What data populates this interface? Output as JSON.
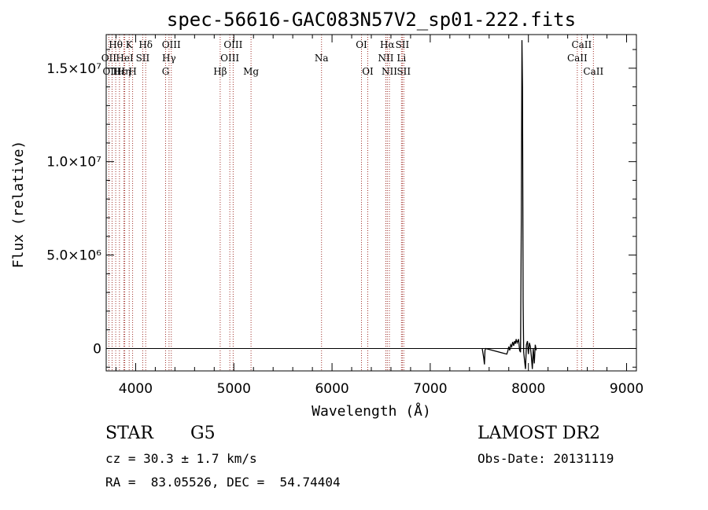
{
  "chart_data": {
    "type": "line",
    "title": "spec-56616-GAC083N57V2_sp01-222.fits",
    "xlabel": "Wavelength (Å)",
    "ylabel": "Flux (relative)",
    "xlim": [
      3700,
      9100
    ],
    "ylim": [
      -1200000,
      16800000
    ],
    "x_ticks": [
      {
        "value": 4000,
        "label": "4000"
      },
      {
        "value": 5000,
        "label": "5000"
      },
      {
        "value": 6000,
        "label": "6000"
      },
      {
        "value": 7000,
        "label": "7000"
      },
      {
        "value": 8000,
        "label": "8000"
      },
      {
        "value": 9000,
        "label": "9000"
      }
    ],
    "y_ticks": [
      {
        "value": 0,
        "label": "0"
      },
      {
        "value": 5000000,
        "label": "5.0×10⁶"
      },
      {
        "value": 10000000,
        "label": "1.0×10⁷"
      },
      {
        "value": 15000000,
        "label": "1.5×10⁷"
      }
    ],
    "series": [
      {
        "color": "#000000",
        "points": [
          [
            7530,
            0
          ],
          [
            7545,
            -500000
          ],
          [
            7552,
            -850000
          ],
          [
            7558,
            -100000
          ],
          [
            7565,
            0
          ],
          [
            7780,
            -300000
          ],
          [
            7790,
            -150000
          ],
          [
            7800,
            100000
          ],
          [
            7810,
            -100000
          ],
          [
            7820,
            200000
          ],
          [
            7830,
            100000
          ],
          [
            7840,
            350000
          ],
          [
            7850,
            150000
          ],
          [
            7860,
            400000
          ],
          [
            7868,
            250000
          ],
          [
            7875,
            500000
          ],
          [
            7885,
            300000
          ],
          [
            7900,
            500000
          ],
          [
            7910,
            -100000
          ],
          [
            7920,
            -200000
          ],
          [
            7928,
            7000000
          ],
          [
            7934,
            16500000
          ],
          [
            7940,
            14000000
          ],
          [
            7946,
            2500000
          ],
          [
            7952,
            -200000
          ],
          [
            7960,
            -600000
          ],
          [
            7970,
            -1100000
          ],
          [
            7980,
            200000
          ],
          [
            7990,
            400000
          ],
          [
            8000,
            -300000
          ],
          [
            8010,
            300000
          ],
          [
            8020,
            100000
          ],
          [
            8030,
            -400000
          ],
          [
            8040,
            -1100000
          ],
          [
            8050,
            0
          ],
          [
            8060,
            -800000
          ],
          [
            8070,
            200000
          ],
          [
            8080,
            -100000
          ]
        ]
      }
    ],
    "line_markers": [
      {
        "label": "Hθ",
        "x": 3797,
        "row": 0
      },
      {
        "label": "OII",
        "x": 3727,
        "row": 1
      },
      {
        "label": "OIII",
        "x": 3760,
        "row": 2
      },
      {
        "label": "Hε",
        "x": 3835,
        "row": 2
      },
      {
        "label": "HeI",
        "x": 3889,
        "row": 1
      },
      {
        "label": "K",
        "x": 3934,
        "row": 0
      },
      {
        "label": "Hη",
        "x": 3880,
        "row": 2
      },
      {
        "label": "H",
        "x": 3969,
        "row": 2
      },
      {
        "label": "SII",
        "x": 4072,
        "row": 1
      },
      {
        "label": "Hδ",
        "x": 4102,
        "row": 0
      },
      {
        "label": "OIII",
        "x": 4363,
        "row": 0
      },
      {
        "label": "Hγ",
        "x": 4340,
        "row": 1
      },
      {
        "label": "G",
        "x": 4305,
        "row": 2
      },
      {
        "label": "OIII",
        "x": 4993,
        "row": 0
      },
      {
        "label": "OIII",
        "x": 4959,
        "row": 1
      },
      {
        "label": "Hβ",
        "x": 4861,
        "row": 2
      },
      {
        "label": "Mg",
        "x": 5175,
        "row": 2
      },
      {
        "label": "Na",
        "x": 5893,
        "row": 1
      },
      {
        "label": "OI",
        "x": 6300,
        "row": 0
      },
      {
        "label": "OI",
        "x": 6364,
        "row": 2
      },
      {
        "label": "Hα",
        "x": 6563,
        "row": 0
      },
      {
        "label": "SII",
        "x": 6716,
        "row": 0
      },
      {
        "label": "NII",
        "x": 6548,
        "row": 1
      },
      {
        "label": "Li",
        "x": 6707,
        "row": 1
      },
      {
        "label": "NII",
        "x": 6584,
        "row": 2
      },
      {
        "label": "SII",
        "x": 6731,
        "row": 2
      },
      {
        "label": "CaII",
        "x": 8542,
        "row": 0
      },
      {
        "label": "CaII",
        "x": 8498,
        "row": 1
      },
      {
        "label": "CaII",
        "x": 8662,
        "row": 2
      }
    ],
    "marker_color": "#a0302a"
  },
  "info": {
    "class": "STAR",
    "subclass": "G5",
    "survey": "LAMOST DR2",
    "cz": "cz = 30.3 ± 1.7 km/s",
    "obs_date": "Obs-Date: 20131119",
    "radec": "RA =  83.05526, DEC =  54.74404"
  }
}
